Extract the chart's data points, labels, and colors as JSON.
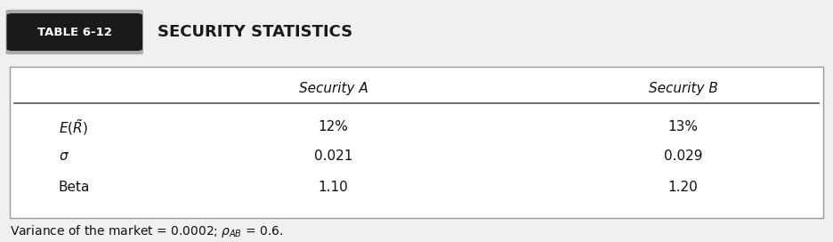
{
  "table_label": "TABLE 6-12",
  "table_title": "SECURITY STATISTICS",
  "col_headers": [
    "Security A",
    "Security B"
  ],
  "row_labels_math": [
    "$E(\\tilde{R})$",
    "$\\sigma$",
    "Beta"
  ],
  "values": [
    [
      "12%",
      "13%"
    ],
    [
      "0.021",
      "0.029"
    ],
    [
      "1.10",
      "1.20"
    ]
  ],
  "footnote_main": "Variance of the market = 0.0002; ",
  "footnote_end": " = 0.6.",
  "bg_color": "#f0f0f0",
  "table_bg": "#ffffff",
  "label_bg": "#1a1a1a",
  "hatch_bg": "#aaaaaa"
}
